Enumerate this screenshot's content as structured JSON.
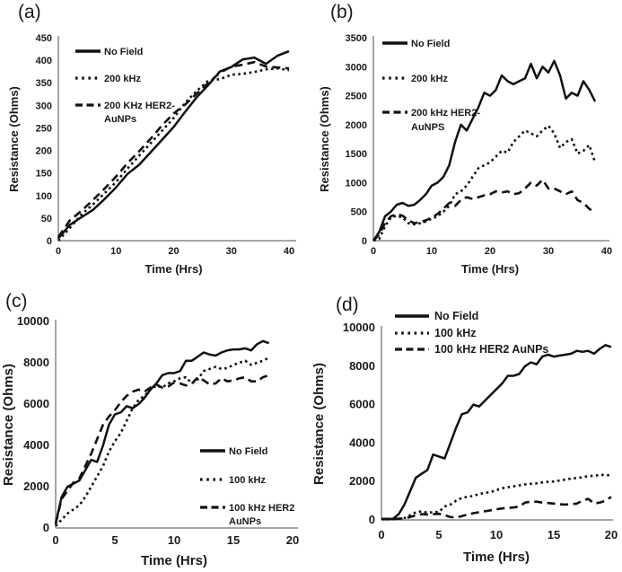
{
  "figure": {
    "background": "#ffffff",
    "curve_color": "#111111",
    "axis_color": "#a6a6a6",
    "text_color": "#1a1a1a"
  },
  "chart_data": [
    {
      "id": "a",
      "panel_label": "(a)",
      "type": "line",
      "xlabel": "Time (Hrs)",
      "ylabel": "Resistance (Ohms)",
      "xlim": [
        0,
        40
      ],
      "ylim": [
        0,
        450
      ],
      "xticks": [
        0,
        10,
        20,
        30,
        40
      ],
      "yticks": [
        0,
        50,
        100,
        150,
        200,
        250,
        300,
        350,
        400,
        450
      ],
      "grid": false,
      "legend_position": "inside-top-left",
      "legend": [
        {
          "style": "solid",
          "label_lines": [
            "No Field"
          ]
        },
        {
          "style": "dotted",
          "label_lines": [
            "200 kHz"
          ]
        },
        {
          "style": "dashed",
          "label_lines": [
            "200 KHz HER2-",
            "AuNPs"
          ]
        }
      ],
      "series": [
        {
          "name": "No Field",
          "style": "solid",
          "x_start": 0,
          "x_step": 2,
          "y": [
            5,
            35,
            52,
            68,
            92,
            118,
            148,
            168,
            196,
            224,
            252,
            286,
            318,
            345,
            375,
            385,
            402,
            406,
            392,
            410,
            420
          ]
        },
        {
          "name": "200 kHz",
          "style": "dotted",
          "x_start": 0,
          "x_step": 2,
          "y": [
            0,
            28,
            58,
            80,
            105,
            130,
            160,
            188,
            216,
            244,
            272,
            306,
            332,
            355,
            358,
            368,
            370,
            374,
            380,
            382,
            378
          ]
        },
        {
          "name": "200 KHz HER2-AuNPs",
          "style": "dashed",
          "x_start": 0,
          "x_step": 2,
          "y": [
            8,
            45,
            66,
            90,
            115,
            142,
            172,
            198,
            226,
            256,
            282,
            302,
            326,
            350,
            372,
            386,
            390,
            396,
            386,
            384,
            382
          ]
        }
      ]
    },
    {
      "id": "b",
      "panel_label": "(b)",
      "type": "line",
      "xlabel": "Time (Hrs)",
      "ylabel": "Resistance (Ohms)",
      "xlim": [
        0,
        40
      ],
      "ylim": [
        0,
        3500
      ],
      "xticks": [
        0,
        10,
        20,
        30,
        40
      ],
      "yticks": [
        0,
        500,
        1000,
        1500,
        2000,
        2500,
        3000,
        3500
      ],
      "grid": false,
      "legend_position": "inside-top-left",
      "legend": [
        {
          "style": "solid",
          "label_lines": [
            "No Field"
          ]
        },
        {
          "style": "dotted",
          "label_lines": [
            "200 kHz"
          ]
        },
        {
          "style": "dashed",
          "label_lines": [
            "200 kHz HER2-",
            "AuNPS"
          ]
        }
      ],
      "series": [
        {
          "name": "No Field",
          "style": "solid",
          "x_start": 0,
          "x_step": 1,
          "y": [
            0,
            150,
            420,
            500,
            620,
            650,
            600,
            620,
            700,
            800,
            950,
            1000,
            1100,
            1300,
            1700,
            2000,
            1900,
            2100,
            2300,
            2550,
            2500,
            2600,
            2850,
            2750,
            2700,
            2750,
            2800,
            3050,
            2800,
            3000,
            2900,
            3100,
            2850,
            2450,
            2550,
            2500,
            2750,
            2600,
            2400
          ]
        },
        {
          "name": "200 kHz",
          "style": "dotted",
          "x_start": 0,
          "x_step": 1,
          "y": [
            0,
            30,
            250,
            400,
            430,
            400,
            300,
            280,
            300,
            330,
            380,
            420,
            500,
            600,
            800,
            850,
            950,
            1100,
            1250,
            1300,
            1350,
            1450,
            1550,
            1520,
            1700,
            1800,
            1900,
            1850,
            1800,
            1900,
            1980,
            1850,
            1600,
            1700,
            1750,
            1500,
            1550,
            1650,
            1350
          ]
        },
        {
          "name": "200 kHz HER2-AuNPS",
          "style": "dashed",
          "x_start": 0,
          "x_step": 1,
          "y": [
            0,
            100,
            300,
            420,
            460,
            430,
            350,
            300,
            320,
            350,
            400,
            460,
            550,
            650,
            600,
            700,
            750,
            720,
            750,
            780,
            800,
            850,
            830,
            850,
            800,
            820,
            900,
            1000,
            950,
            1050,
            900,
            900,
            850,
            800,
            850,
            700,
            650,
            550,
            480
          ]
        }
      ]
    },
    {
      "id": "c",
      "panel_label": "(c)",
      "type": "line",
      "xlabel": "Time (Hrs)",
      "ylabel": "Resistance (Ohms)",
      "xlim": [
        0,
        20
      ],
      "ylim": [
        0,
        10000
      ],
      "xticks": [
        0,
        5,
        10,
        15,
        20
      ],
      "yticks": [
        0,
        2000,
        4000,
        6000,
        8000,
        10000
      ],
      "grid": false,
      "legend_position": "inside-right-lower",
      "legend": [
        {
          "style": "solid",
          "label_lines": [
            "No Field"
          ]
        },
        {
          "style": "dotted",
          "label_lines": [
            "100 kHz"
          ]
        },
        {
          "style": "dashed",
          "label_lines": [
            "100 kHz HER2",
            "AuNPs"
          ]
        }
      ],
      "series": [
        {
          "name": "No Field",
          "style": "solid",
          "x_start": 0,
          "x_step": 0.5,
          "y": [
            200,
            1500,
            2000,
            2150,
            2300,
            2800,
            3300,
            3200,
            4000,
            5000,
            5500,
            5600,
            5900,
            5800,
            6000,
            6300,
            6700,
            7000,
            7400,
            7500,
            7500,
            7600,
            8100,
            8100,
            8300,
            8500,
            8400,
            8350,
            8500,
            8600,
            8650,
            8650,
            8700,
            8600,
            8900,
            9050,
            8950
          ]
        },
        {
          "name": "100 kHz",
          "style": "dotted",
          "x_start": 0,
          "x_step": 0.5,
          "y": [
            100,
            400,
            700,
            900,
            1100,
            1500,
            2000,
            2500,
            3000,
            3700,
            4200,
            4600,
            5200,
            5800,
            6200,
            6400,
            6700,
            6900,
            6800,
            7000,
            7100,
            7250,
            7300,
            7000,
            7200,
            7600,
            7700,
            7800,
            7700,
            7750,
            7900,
            8000,
            8100,
            7900,
            8000,
            8100,
            8250
          ]
        },
        {
          "name": "100 kHz HER2 AuNPs",
          "style": "dashed",
          "x_start": 0,
          "x_step": 0.5,
          "y": [
            200,
            1400,
            1800,
            2200,
            2400,
            3000,
            3600,
            4300,
            5000,
            5400,
            5700,
            6100,
            6400,
            6600,
            6700,
            6600,
            6800,
            6950,
            6800,
            6850,
            7050,
            7000,
            6900,
            7000,
            7300,
            7150,
            6950,
            7000,
            7250,
            7100,
            7150,
            7250,
            7300,
            7100,
            7100,
            7300,
            7400
          ]
        }
      ]
    },
    {
      "id": "d",
      "panel_label": "(d)",
      "type": "line",
      "xlabel": "Time (Hrs)",
      "ylabel": "Resistance (Ohms)",
      "xlim": [
        0,
        20
      ],
      "ylim": [
        0,
        10000
      ],
      "xticks": [
        0,
        5,
        10,
        15,
        20
      ],
      "yticks": [
        0,
        2000,
        4000,
        6000,
        8000,
        10000
      ],
      "grid": false,
      "legend_position": "inside-top",
      "legend": [
        {
          "style": "solid",
          "label_lines": [
            "No Field"
          ]
        },
        {
          "style": "dotted",
          "label_lines": [
            "100 kHz"
          ]
        },
        {
          "style": "dashed",
          "label_lines": [
            "100 kHz HER2 AuNPs"
          ]
        }
      ],
      "series": [
        {
          "name": "No Field",
          "style": "solid",
          "x_start": 0,
          "x_step": 0.5,
          "y": [
            50,
            50,
            50,
            300,
            800,
            1500,
            2200,
            2400,
            2600,
            3400,
            3300,
            3200,
            4000,
            4800,
            5500,
            5600,
            6000,
            5900,
            6200,
            6500,
            6800,
            7100,
            7500,
            7500,
            7600,
            8000,
            8200,
            8100,
            8500,
            8600,
            8500,
            8550,
            8600,
            8650,
            8800,
            8750,
            8800,
            8650,
            8900,
            9100,
            9000
          ]
        },
        {
          "name": "100 kHz",
          "style": "dotted",
          "x_start": 0,
          "x_step": 0.5,
          "y": [
            50,
            50,
            50,
            60,
            100,
            250,
            400,
            450,
            380,
            400,
            420,
            700,
            800,
            1000,
            1150,
            1200,
            1250,
            1350,
            1400,
            1450,
            1550,
            1650,
            1700,
            1750,
            1800,
            1850,
            1880,
            1900,
            1950,
            1980,
            2000,
            2050,
            2100,
            2150,
            2180,
            2220,
            2280,
            2300,
            2330,
            2350,
            2300
          ]
        },
        {
          "name": "100 kHz HER2 AuNPs",
          "style": "dashed",
          "x_start": 0,
          "x_step": 0.5,
          "y": [
            50,
            50,
            50,
            60,
            80,
            150,
            250,
            300,
            280,
            300,
            320,
            250,
            150,
            120,
            200,
            280,
            350,
            400,
            450,
            500,
            550,
            600,
            620,
            650,
            700,
            900,
            950,
            950,
            900,
            880,
            850,
            820,
            800,
            820,
            850,
            1000,
            1100,
            850,
            900,
            1000,
            1200
          ]
        }
      ]
    }
  ]
}
